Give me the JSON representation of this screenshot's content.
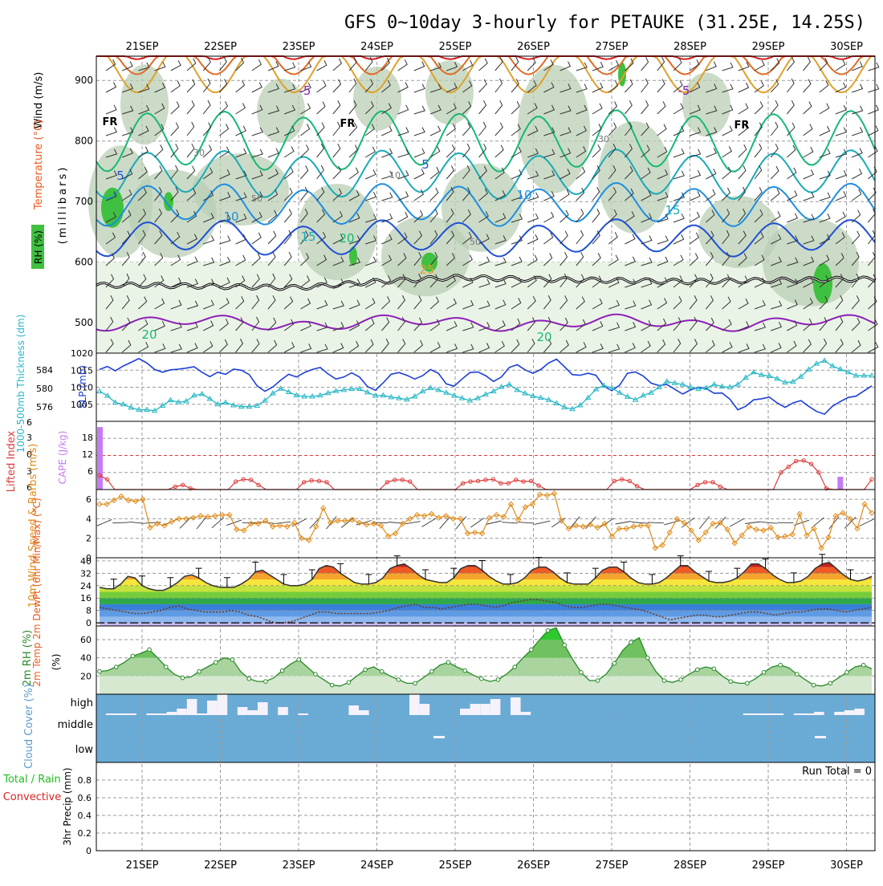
{
  "title": "GFS 0~10day 3-hourly for PETAUKE (31.25E, 14.25S)",
  "colors": {
    "grid": "#9a9a9a",
    "slp": "#1c3fd6",
    "thickness": "#27b7c6",
    "lifted_index": "#dd3b3b",
    "cape": "#c77bf2",
    "wind_speed": "#e08c1a",
    "barb": "#333333",
    "rh_line": "#2a8a2a",
    "cloud": "#6aabd6",
    "precip_total": "#22bb22",
    "precip_conv": "#dd2222",
    "freezing": "#000000",
    "iso_neg5": "#8d1fb8",
    "iso_5": "#1f4fd4",
    "iso_10": "#1e8ee0",
    "iso_15": "#1aaab7",
    "iso_20": "#17b874",
    "iso_25": "#e0a12a",
    "iso_30": "#e06b25",
    "iso_35": "#d81f1f"
  },
  "chart_data": [
    {
      "panel": "upper-air",
      "type": "heatmap",
      "dates": [
        "21SEP",
        "22SEP",
        "23SEP",
        "24SEP",
        "25SEP",
        "26SEP",
        "27SEP",
        "28SEP",
        "29SEP",
        "30SEP"
      ],
      "ylabel": "(millibars)",
      "side_labels": [
        "Wind (m/s)",
        "Temperature (°C)",
        "RH (%)"
      ],
      "y_ticks": [
        "500",
        "600",
        "700",
        "800",
        "900"
      ],
      "ylim": [
        450,
        940
      ],
      "freezing_label": "FR",
      "isotherm_labels": [
        "-5",
        "-5",
        "5",
        "5",
        "10",
        "10",
        "15",
        "15",
        "20",
        "20",
        "20",
        "25"
      ],
      "rh_labels": [
        "30",
        "10",
        "50",
        "50",
        "30"
      ],
      "isotherms": [
        {
          "t": -5,
          "base": 500,
          "amp": 8
        },
        {
          "t": 5,
          "base": 640,
          "amp": 25
        },
        {
          "t": 10,
          "base": 695,
          "amp": 30
        },
        {
          "t": 15,
          "base": 745,
          "amp": 35
        },
        {
          "t": 20,
          "base": 800,
          "amp": 45
        },
        {
          "t": 25,
          "base": 880,
          "amp": 70
        },
        {
          "t": 30,
          "base": 910,
          "amp": 60
        },
        {
          "t": 35,
          "base": 935,
          "amp": 30
        }
      ],
      "freezing_level_mb": [
        562,
        560,
        558,
        568,
        575,
        572,
        570,
        568,
        570,
        572
      ]
    },
    {
      "panel": "slp-thickness",
      "type": "line",
      "ylabel_left": "1000-500mb Thickness (dm)",
      "ylabel_right": "SLP (mb)",
      "left_ticks": [
        "584",
        "580",
        "576"
      ],
      "right_ticks": [
        "1020",
        "1015",
        "1010",
        "1005"
      ],
      "slp_ylim": [
        1000,
        1020
      ],
      "series": [
        {
          "name": "SLP (mb)",
          "values": [
            1015.2,
            1016.1,
            1014.8,
            1016.2,
            1017.3,
            1018.4,
            1017.1,
            1015.2,
            1014.4,
            1015.1,
            1015.3,
            1015.6,
            1016.0,
            1014.4,
            1013.1,
            1014.4,
            1013.8,
            1015.3,
            1015.0,
            1013.7,
            1010.4,
            1008.8,
            1010.1,
            1012.1,
            1013.8,
            1013.0,
            1014.3,
            1015.2,
            1015.8,
            1013.9,
            1012.4,
            1013.0,
            1014.2,
            1013.0,
            1010.2,
            1009.1,
            1011.3,
            1013.8,
            1014.3,
            1013.5,
            1012.4,
            1013.4,
            1015.2,
            1014.1,
            1011.0,
            1010.3,
            1012.4,
            1014.3,
            1014.5,
            1013.4,
            1011.7,
            1013.0,
            1015.8,
            1016.6,
            1015.1,
            1014.1,
            1015.2,
            1017.1,
            1018.2,
            1016.0,
            1013.7,
            1013.5,
            1014.1,
            1013.5,
            1010.3,
            1009.0,
            1010.6,
            1014.1,
            1014.5,
            1013.3,
            1011.2,
            1010.5,
            1010.8,
            1009.4,
            1008.0,
            1009.2,
            1010.0,
            1009.6,
            1008.2,
            1008.3,
            1006.5,
            1003.4,
            1004.4,
            1006.3,
            1006.6,
            1007.1,
            1005.4,
            1004.1,
            1005.4,
            1006.1,
            1004.4,
            1002.9,
            1002.1,
            1004.4,
            1005.8,
            1007.0,
            1007.4,
            1008.9,
            1010.4
          ]
        },
        {
          "name": "1000-500mb Thickness (dm)",
          "values": [
            1008.8,
            1007.5,
            1005.5,
            1005.0,
            1004.0,
            1003.4,
            1003.4,
            1003.1,
            1004.6,
            1006.2,
            1005.6,
            1005.9,
            1007.6,
            1008.0,
            1006.6,
            1005.0,
            1005.5,
            1004.7,
            1004.3,
            1004.3,
            1004.6,
            1006.1,
            1008.2,
            1009.6,
            1008.6,
            1007.6,
            1007.3,
            1007.3,
            1007.6,
            1008.3,
            1008.9,
            1009.2,
            1009.5,
            1009.5,
            1008.5,
            1007.5,
            1007.6,
            1007.1,
            1006.8,
            1006.4,
            1007.3,
            1008.8,
            1009.8,
            1009.2,
            1008.4,
            1007.5,
            1006.8,
            1006.1,
            1006.8,
            1007.9,
            1008.8,
            1010.1,
            1010.8,
            1009.2,
            1008.2,
            1007.4,
            1006.9,
            1006.3,
            1005.3,
            1004.1,
            1003.6,
            1004.7,
            1006.9,
            1009.4,
            1010.5,
            1009.8,
            1008.4,
            1007.2,
            1006.3,
            1007.6,
            1008.4,
            1010.0,
            1011.7,
            1011.2,
            1010.8,
            1010.0,
            1009.5,
            1009.8,
            1010.8,
            1010.2,
            1010.0,
            1010.8,
            1012.8,
            1014.4,
            1013.6,
            1013.3,
            1012.5,
            1011.4,
            1011.6,
            1013.1,
            1015.2,
            1016.9,
            1017.8,
            1016.2,
            1015.3,
            1014.4,
            1013.4,
            1013.4,
            1013.4
          ]
        }
      ]
    },
    {
      "panel": "cape-li",
      "type": "bar",
      "ylabel_left": "Lifted Index",
      "ylabel_right": "CAPE (J/kg)",
      "li_ticks": [
        "6",
        "3",
        "0",
        "3",
        "6"
      ],
      "cape_ticks": [
        "18",
        "12",
        "6"
      ],
      "li_ylim": [
        -6,
        6
      ],
      "series": [
        {
          "name": "Lifted Index",
          "values": [
            -3.5,
            -4.2,
            -6,
            -6,
            -6,
            -6,
            -6,
            -6,
            -6,
            -6,
            -5.5,
            -5.2,
            -5.8,
            -6,
            -6,
            -6,
            -6,
            -6,
            -4.6,
            -4.2,
            -4.3,
            -5.2,
            -6,
            -6,
            -6,
            -6,
            -6,
            -4.7,
            -4.4,
            -4.5,
            -4.7,
            -6,
            -6,
            -6,
            -6,
            -6,
            -6,
            -6,
            -4.7,
            -4.3,
            -4.3,
            -4.6,
            -6,
            -6,
            -6,
            -6,
            -6,
            -6,
            -4.9,
            -4.6,
            -4.5,
            -4.3,
            -4.2,
            -4.9,
            -4.9,
            -4.3,
            -4.6,
            -4.5,
            -5.3,
            -6,
            -6,
            -6,
            -6,
            -6,
            -6,
            -6,
            -6,
            -6,
            -4.5,
            -4.2,
            -4.5,
            -5.4,
            -6,
            -6,
            -6,
            -6,
            -6,
            -6,
            -6,
            -5.2,
            -4.7,
            -4.7,
            -5.5,
            -6,
            -6,
            -6,
            -6,
            -6,
            -6,
            -6,
            -3.0,
            -2.0,
            -1.0,
            -0.9,
            -1.5,
            -3.0,
            -5.8,
            -6,
            -6,
            -6,
            -6,
            -6,
            -4.2
          ]
        },
        {
          "name": "CAPE (J/kg)",
          "values": [
            22,
            0,
            0,
            0,
            0,
            0,
            0,
            0,
            0,
            0,
            0,
            0,
            0,
            0,
            0,
            0,
            0,
            0,
            0,
            0,
            0,
            0,
            0,
            0,
            0,
            0,
            0,
            0,
            0,
            0,
            0,
            0,
            0,
            0,
            0,
            0,
            0,
            0,
            0,
            0,
            0,
            0,
            0,
            0,
            0,
            0,
            0,
            0,
            0,
            0,
            0,
            0,
            0,
            0,
            0,
            0,
            0,
            0,
            0,
            0,
            0,
            0,
            0,
            0,
            0,
            0,
            0,
            0,
            0,
            0,
            0,
            0,
            0,
            0,
            0,
            0,
            0,
            0,
            0,
            0,
            0,
            0,
            0,
            0,
            0,
            0,
            0,
            0,
            0,
            0,
            0,
            0,
            0,
            4.5,
            0,
            0,
            0,
            0
          ]
        }
      ]
    },
    {
      "panel": "wind-10m",
      "type": "line",
      "ylabel": "10m Wind Speed & Barbs (m/s)",
      "y_ticks": [
        "6",
        "4",
        "2",
        "0"
      ],
      "ylim": [
        0,
        7
      ],
      "series": [
        {
          "name": "10m Wind Speed (m/s)",
          "values": [
            5.5,
            5.5,
            5.9,
            6.3,
            5.9,
            5.8,
            6.0,
            3.1,
            3.5,
            3.3,
            3.7,
            4.0,
            4.0,
            4.1,
            4.3,
            4.2,
            4.3,
            4.4,
            4.4,
            2.9,
            2.8,
            3.5,
            3.5,
            3.8,
            3.2,
            3.3,
            3.2,
            3.6,
            2.0,
            1.8,
            3.2,
            5.1,
            3.6,
            3.8,
            3.8,
            3.9,
            3.6,
            3.4,
            3.5,
            3.3,
            2.2,
            2.5,
            3.5,
            4.0,
            4.4,
            4.3,
            4.5,
            4.1,
            4.3,
            4.0,
            4.0,
            2.5,
            2.6,
            2.5,
            4.1,
            4.4,
            4.2,
            5.5,
            3.9,
            5.2,
            5.5,
            6.5,
            6.4,
            6.6,
            3.8,
            3.0,
            3.3,
            3.2,
            3.4,
            3.1,
            3.5,
            2.2,
            3.0,
            3.0,
            3.2,
            3.3,
            3.3,
            1.0,
            1.3,
            2.6,
            4.0,
            3.6,
            2.8,
            1.8,
            2.6,
            3.5,
            3.6,
            2.9,
            1.5,
            2.3,
            3.2,
            2.9,
            2.8,
            3.1,
            2.1,
            2.2,
            2.4,
            4.5,
            2.3,
            3.0,
            1.0,
            2.1,
            4.3,
            4.6,
            4.0,
            3.0,
            5.5,
            4.6
          ]
        }
      ]
    },
    {
      "panel": "temperature-2m",
      "type": "area",
      "ylabel": "2m Temp 2m DewPt (6hr Min/Max) (°C)",
      "y_ticks": [
        "40",
        "32",
        "24",
        "16",
        "8",
        "0"
      ],
      "ylim": [
        -2,
        42
      ],
      "series": [
        {
          "name": "2m Temp (°C)",
          "values": [
            23,
            22,
            22,
            25,
            30,
            29,
            24,
            22,
            21,
            21,
            23,
            26,
            30,
            31,
            29,
            26,
            24,
            23,
            23,
            23,
            25,
            28,
            33,
            34,
            31,
            28,
            25,
            24,
            24,
            25,
            28,
            35,
            37,
            36,
            32,
            29,
            26,
            25,
            25,
            26,
            29,
            35,
            37,
            38,
            35,
            31,
            28,
            27,
            26,
            26,
            29,
            35,
            37,
            37,
            34,
            30,
            27,
            25,
            25,
            26,
            29,
            34,
            36,
            36,
            33,
            29,
            26,
            25,
            25,
            25,
            29,
            34,
            36,
            36,
            33,
            29,
            26,
            25,
            25,
            26,
            29,
            33,
            37,
            37,
            33,
            30,
            27,
            26,
            26,
            27,
            29,
            33,
            38,
            38,
            35,
            31,
            28,
            26,
            26,
            27,
            30,
            35,
            38,
            39,
            35,
            31,
            28,
            27,
            28,
            30
          ]
        },
        {
          "name": "2m DewPt (°C)",
          "values": [
            10,
            9,
            8,
            7,
            6,
            6,
            7,
            8,
            10,
            11,
            9,
            8,
            7,
            7,
            7,
            8,
            7,
            5,
            4,
            2,
            0,
            0,
            1,
            3,
            5,
            7,
            7,
            6,
            6,
            6,
            6,
            6,
            7,
            8,
            10,
            11,
            12,
            10,
            10,
            9,
            10,
            11,
            12,
            12,
            11,
            10,
            11,
            13,
            14,
            15,
            15,
            14,
            13,
            11,
            10,
            10,
            11,
            12,
            12,
            11,
            10,
            9,
            8,
            6,
            4,
            2,
            3,
            4,
            5,
            5,
            4,
            4,
            5,
            6,
            7,
            7,
            6,
            5,
            6,
            7,
            7,
            8,
            9,
            9,
            8,
            7,
            8,
            9,
            10
          ]
        }
      ]
    },
    {
      "panel": "rh-2m",
      "type": "area",
      "ylabel": "2m RH (%)",
      "y_ticks": [
        "60",
        "40",
        "20"
      ],
      "ylim": [
        0,
        75
      ],
      "series": [
        {
          "name": "2m RH (%)",
          "values": [
            25,
            26,
            30,
            35,
            42,
            45,
            49,
            40,
            30,
            22,
            18,
            19,
            25,
            30,
            35,
            40,
            38,
            25,
            17,
            14,
            14,
            18,
            26,
            33,
            38,
            30,
            22,
            16,
            10,
            9,
            13,
            20,
            27,
            30,
            25,
            20,
            16,
            12,
            12,
            18,
            25,
            32,
            35,
            30,
            26,
            21,
            17,
            14,
            16,
            22,
            30,
            40,
            49,
            60,
            70,
            73,
            54,
            38,
            24,
            15,
            15,
            22,
            34,
            48,
            57,
            62,
            40,
            25,
            15,
            13,
            16,
            22,
            27,
            30,
            28,
            20,
            14,
            12,
            12,
            17,
            24,
            30,
            32,
            29,
            22,
            16,
            10,
            9,
            12,
            18,
            24,
            30,
            32,
            28
          ]
        }
      ]
    },
    {
      "panel": "cloud-cover",
      "type": "bar",
      "ylabel": "Cloud Cover (%)",
      "y_ticks": [
        "high",
        "middle",
        "low"
      ]
    },
    {
      "panel": "precipitation",
      "type": "bar",
      "ylabel": "3hr Precip (mm)",
      "legend": [
        "Total / Rain",
        "Convective"
      ],
      "y_ticks": [
        "0.8",
        "0.6",
        "0.4",
        "0.2",
        "0"
      ],
      "ylim": [
        0,
        1.0
      ],
      "run_total": "Run Total = 0",
      "series": [
        {
          "name": "3hr Precip (mm)",
          "values": [
            0,
            0,
            0,
            0,
            0,
            0,
            0,
            0,
            0,
            0
          ]
        }
      ]
    }
  ]
}
